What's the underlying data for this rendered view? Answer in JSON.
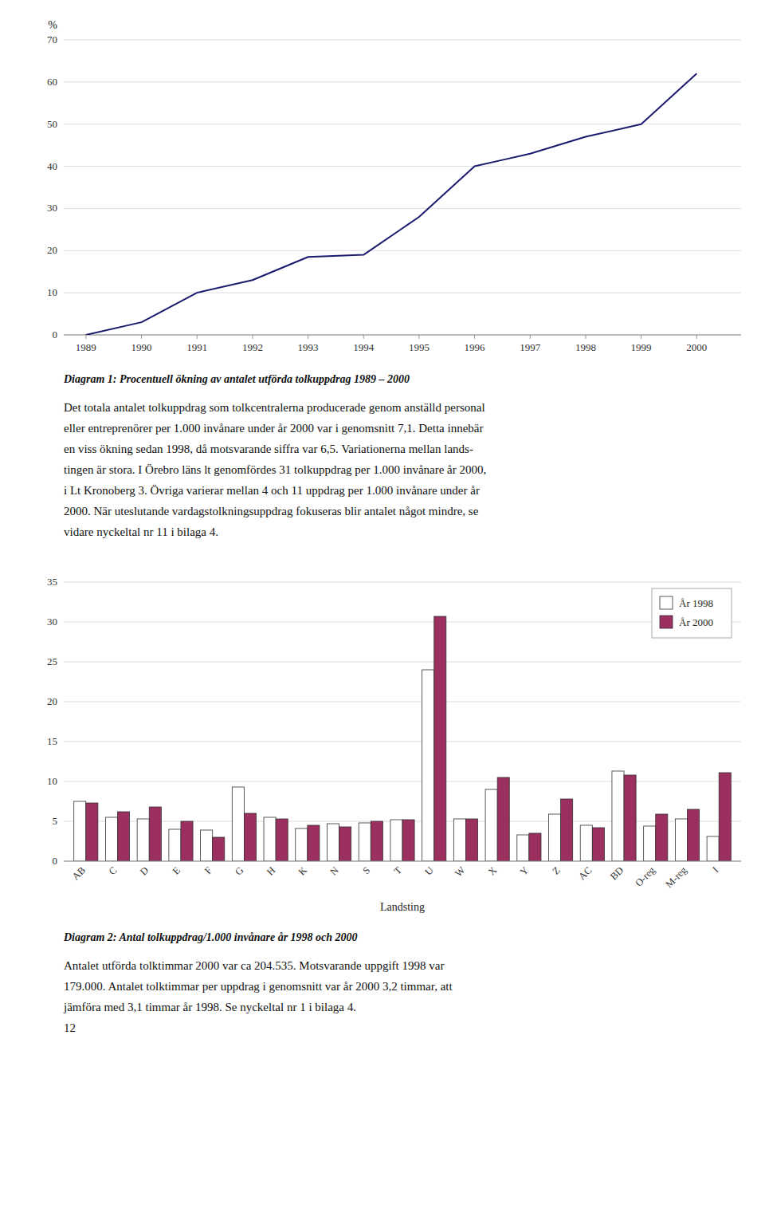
{
  "chart_data": [
    {
      "type": "line",
      "title": "Diagram 1: Procentuell ökning av antalet utförda tolkuppdrag 1989 – 2000",
      "ylabel": "%",
      "x": [
        1989,
        1990,
        1991,
        1992,
        1993,
        1994,
        1995,
        1996,
        1996.5,
        1997,
        1998,
        1999,
        2000
      ],
      "values": [
        0,
        3,
        10,
        13,
        18.5,
        19,
        28,
        40,
        41.5,
        43,
        47,
        50,
        62
      ],
      "color": "#1a1a6e",
      "xlim": [
        1988.6,
        2000.8
      ],
      "xticks": [
        1989,
        1990,
        1991,
        1992,
        1993,
        1994,
        1995,
        1996,
        1997,
        1998,
        1999,
        2000
      ],
      "ylim": [
        0,
        70
      ],
      "yticks": [
        0,
        10,
        20,
        30,
        40,
        50,
        60,
        70
      ],
      "grid": true,
      "annotations": [
        "Det totala antalet tolkuppdrag som tolkcentralerna producerade genom anställd personal",
        "eller entreprenörer per 1.000 invånare under år 2000 var i genomsnitt 7,1. Detta innebär",
        "en viss ökning sedan 1998, då motsvarande siffra var 6,5. Variationerna mellan lands-",
        "tingen är stora. I Örebro läns lt genomfördes 31 tolkuppdrag per 1.000 invånare år 2000,",
        "i Lt Kronoberg 3. Övriga varierar mellan 4 och 11 uppdrag per 1.000 invånare under år",
        "2000. När uteslutande vardagstolkningsuppdrag fokuseras blir antalet något mindre, se",
        "vidare nyckeltal nr 11 i bilaga 4."
      ]
    },
    {
      "type": "bar",
      "title": "Diagram 2: Antal tolkuppdrag/1.000 invånare år 1998 och 2000",
      "xlabel": "Landsting",
      "categories": [
        "AB",
        "C",
        "D",
        "E",
        "F",
        "G",
        "H",
        "K",
        "N",
        "S",
        "T",
        "U",
        "W",
        "X",
        "Y",
        "Z",
        "AC",
        "BD",
        "O-reg",
        "M-reg",
        "I"
      ],
      "series": [
        {
          "name": "År 1998",
          "color": "#ffffff",
          "values": [
            7.5,
            5.5,
            5.3,
            4.0,
            3.9,
            9.3,
            5.5,
            4.1,
            4.7,
            4.8,
            5.2,
            24.0,
            5.3,
            9.0,
            3.3,
            5.9,
            4.5,
            11.3,
            4.4,
            5.3,
            3.1
          ]
        },
        {
          "name": "År 2000",
          "color": "#9b3060",
          "values": [
            7.3,
            6.2,
            6.8,
            5.0,
            3.0,
            6.0,
            5.3,
            4.5,
            4.3,
            5.0,
            5.2,
            30.7,
            5.3,
            10.5,
            3.5,
            7.8,
            4.2,
            10.8,
            5.9,
            6.5,
            11.1
          ]
        }
      ],
      "ylim": [
        0,
        35
      ],
      "yticks": [
        0,
        5,
        10,
        15,
        20,
        25,
        30,
        35
      ],
      "grid": true,
      "legend": "top-right",
      "annotations": [
        "Antalet utförda tolktimmar 2000 var ca 204.535. Motsvarande uppgift 1998 var",
        "179.000. Antalet tolktimmar per uppdrag i genomsnitt var år 2000 3,2 timmar, att",
        "jämföra med 3,1 timmar år 1998. Se nyckeltal nr 1 i bilaga 4.",
        "12"
      ]
    }
  ]
}
